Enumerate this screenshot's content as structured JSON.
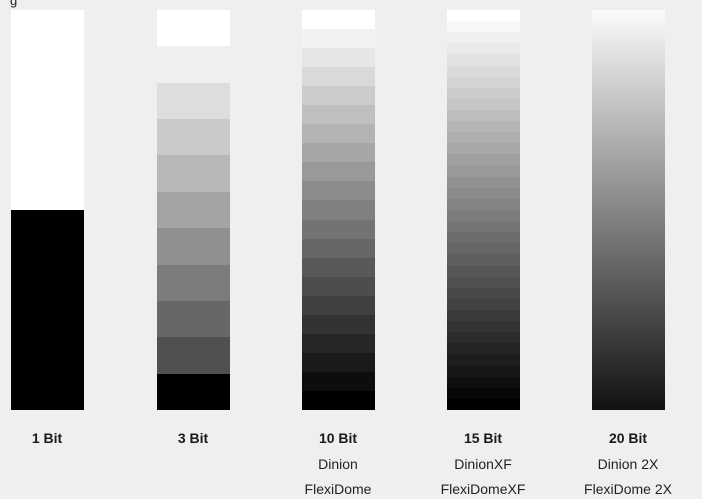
{
  "heading": "g",
  "columns": [
    {
      "title": "1 Bit",
      "lines": [],
      "levels": 2,
      "colors": [
        "#ffffff",
        "#000000"
      ]
    },
    {
      "title": "3 Bit",
      "lines": [],
      "levels": 11,
      "colors": [
        "#ffffff",
        "#eeeff0",
        "#dcdddc",
        "#c9cacc",
        "#b6b7b9",
        "#a3a4a6",
        "#8f9091",
        "#7b7c7d",
        "#666768",
        "#4f5050",
        "#000000"
      ]
    },
    {
      "title": "10 Bit",
      "lines": [
        "Dinion",
        "FlexiDome"
      ],
      "levels": 21,
      "start_color": "#ffffff",
      "end_color": "#000000"
    },
    {
      "title": "15 Bit",
      "lines": [
        "DinionXF",
        "FlexiDomeXF"
      ],
      "levels": 36,
      "start_color": "#ffffff",
      "end_color": "#000000"
    },
    {
      "title": "20 Bit",
      "lines": [
        "Dinion 2X",
        "FlexiDome 2X"
      ],
      "levels": 0,
      "start_color": "#fbfbfb",
      "end_color": "#111111"
    }
  ]
}
